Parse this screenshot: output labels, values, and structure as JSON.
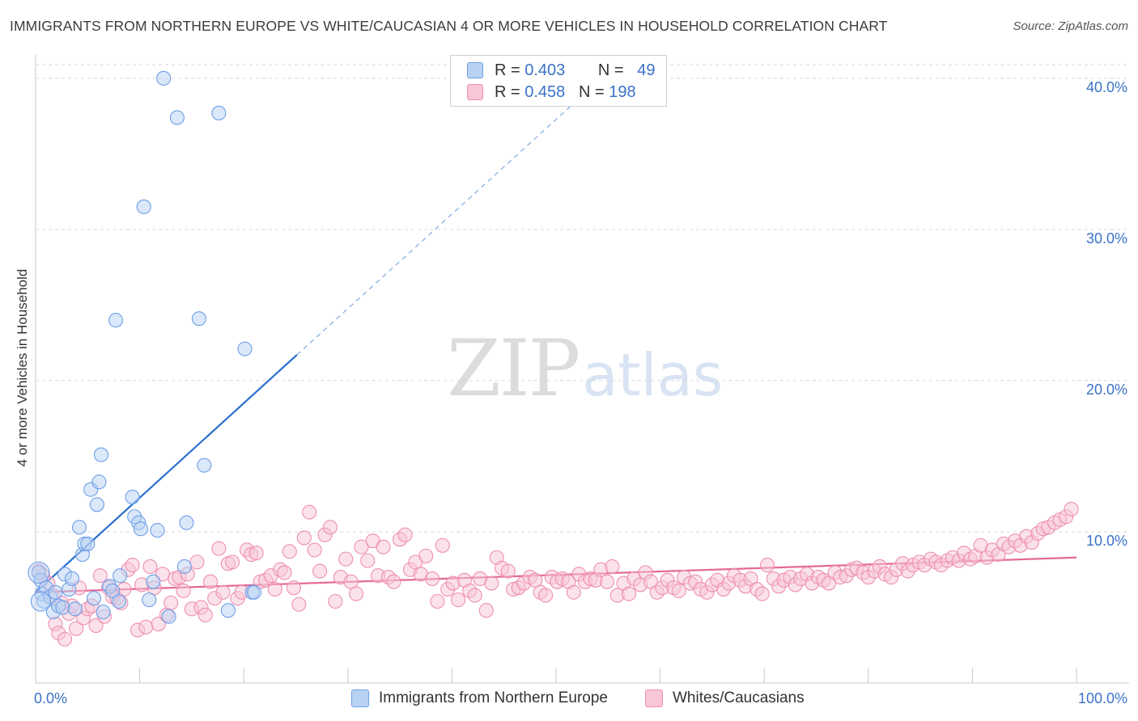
{
  "title": "IMMIGRANTS FROM NORTHERN EUROPE VS WHITE/CAUCASIAN 4 OR MORE VEHICLES IN HOUSEHOLD CORRELATION CHART",
  "source": "Source: ZipAtlas.com",
  "watermark": {
    "zip": "ZIP",
    "atlas": "atlas"
  },
  "legend": {
    "rows": [
      {
        "r_label": "R =",
        "r_value": "0.403",
        "n_label": "N =",
        "n_value": "49"
      },
      {
        "r_label": "R =",
        "r_value": "0.458",
        "n_label": "N =",
        "n_value": "198"
      }
    ]
  },
  "colors": {
    "blue": "#6d9ee8",
    "blue_fill": "#b8d2f4",
    "blue_line": "#2a6fcf",
    "pink": "#ee8fae",
    "pink_fill": "#f8c6d6",
    "pink_line": "#e46a96",
    "tick_text": "#3a72c8"
  },
  "chart_data": {
    "type": "scatter",
    "title": "IMMIGRANTS FROM NORTHERN EUROPE VS WHITE/CAUCASIAN 4 OR MORE VEHICLES IN HOUSEHOLD CORRELATION CHART",
    "xlabel": "",
    "ylabel": "4 or more Vehicles in Household",
    "x_ticks": [
      "0.0%",
      "100.0%"
    ],
    "y_ticks": [
      "10.0%",
      "20.0%",
      "30.0%",
      "40.0%"
    ],
    "xlim": [
      0,
      100
    ],
    "ylim": [
      0,
      40.9
    ],
    "grid": true,
    "legend_position": "bottom",
    "series": [
      {
        "name": "Immigrants from Northern Europe",
        "color": "blue",
        "r": 0.403,
        "n": 49,
        "trend": {
          "x0": 0,
          "y0": 6.0,
          "x1": 25.1,
          "y1": 21.7,
          "dashed_to_x": 52.0
        },
        "points": [
          [
            0.3,
            7.3
          ],
          [
            0.5,
            6.8
          ],
          [
            0.6,
            5.9
          ],
          [
            0.8,
            5.4
          ],
          [
            1.0,
            6.3
          ],
          [
            1.4,
            5.7
          ],
          [
            1.7,
            4.7
          ],
          [
            1.9,
            6.0
          ],
          [
            2.2,
            5.1
          ],
          [
            2.6,
            5.0
          ],
          [
            2.8,
            7.2
          ],
          [
            3.2,
            6.2
          ],
          [
            3.5,
            6.9
          ],
          [
            3.8,
            4.9
          ],
          [
            4.2,
            10.3
          ],
          [
            4.5,
            8.5
          ],
          [
            4.7,
            9.2
          ],
          [
            5.0,
            9.2
          ],
          [
            5.3,
            12.8
          ],
          [
            5.6,
            5.6
          ],
          [
            5.9,
            11.8
          ],
          [
            6.1,
            13.3
          ],
          [
            6.3,
            15.1
          ],
          [
            6.5,
            4.7
          ],
          [
            7.1,
            6.4
          ],
          [
            7.4,
            6.1
          ],
          [
            7.7,
            24.0
          ],
          [
            8.0,
            5.4
          ],
          [
            8.1,
            7.1
          ],
          [
            9.3,
            12.3
          ],
          [
            9.5,
            11.0
          ],
          [
            9.9,
            10.6
          ],
          [
            10.1,
            10.2
          ],
          [
            10.4,
            31.5
          ],
          [
            10.9,
            5.5
          ],
          [
            11.3,
            6.7
          ],
          [
            11.7,
            10.1
          ],
          [
            12.3,
            40.0
          ],
          [
            12.8,
            4.4
          ],
          [
            13.6,
            37.4
          ],
          [
            14.3,
            7.7
          ],
          [
            14.5,
            10.6
          ],
          [
            15.7,
            24.1
          ],
          [
            16.2,
            14.4
          ],
          [
            17.6,
            37.7
          ],
          [
            18.5,
            4.8
          ],
          [
            20.1,
            22.1
          ],
          [
            20.8,
            6.0
          ],
          [
            21.0,
            6.0
          ]
        ]
      },
      {
        "name": "Whites/Caucasians",
        "color": "pink",
        "r": 0.458,
        "n": 198,
        "trend": {
          "x0": 0,
          "y0": 6.0,
          "x1": 100,
          "y1": 8.3
        },
        "points": [
          [
            0.3,
            7.4
          ],
          [
            0.7,
            7.1
          ],
          [
            1.2,
            6.6
          ],
          [
            1.6,
            5.8
          ],
          [
            1.9,
            3.9
          ],
          [
            2.2,
            3.3
          ],
          [
            2.5,
            5.3
          ],
          [
            2.8,
            2.9
          ],
          [
            3.2,
            4.6
          ],
          [
            3.5,
            5.1
          ],
          [
            3.9,
            3.6
          ],
          [
            4.2,
            6.3
          ],
          [
            4.6,
            4.3
          ],
          [
            5.0,
            4.9
          ],
          [
            5.4,
            5.1
          ],
          [
            5.8,
            3.8
          ],
          [
            6.2,
            7.1
          ],
          [
            6.6,
            4.4
          ],
          [
            7.0,
            6.3
          ],
          [
            7.4,
            5.7
          ],
          [
            7.8,
            5.6
          ],
          [
            8.2,
            5.3
          ],
          [
            8.5,
            6.2
          ],
          [
            8.9,
            7.5
          ],
          [
            9.3,
            7.8
          ],
          [
            9.8,
            3.5
          ],
          [
            10.2,
            6.5
          ],
          [
            10.6,
            3.7
          ],
          [
            11.0,
            7.7
          ],
          [
            11.4,
            6.3
          ],
          [
            11.8,
            3.9
          ],
          [
            12.2,
            7.2
          ],
          [
            12.6,
            4.5
          ],
          [
            13.0,
            5.3
          ],
          [
            13.4,
            6.9
          ],
          [
            13.8,
            7.0
          ],
          [
            14.2,
            6.1
          ],
          [
            14.6,
            7.2
          ],
          [
            15.0,
            4.9
          ],
          [
            15.5,
            8.0
          ],
          [
            15.9,
            5.0
          ],
          [
            16.3,
            4.5
          ],
          [
            16.8,
            6.7
          ],
          [
            17.2,
            5.6
          ],
          [
            17.6,
            8.9
          ],
          [
            18.0,
            6.0
          ],
          [
            18.5,
            7.9
          ],
          [
            18.9,
            8.0
          ],
          [
            19.4,
            5.6
          ],
          [
            19.8,
            6.0
          ],
          [
            20.3,
            8.8
          ],
          [
            20.7,
            8.5
          ],
          [
            21.2,
            8.6
          ],
          [
            21.6,
            6.7
          ],
          [
            22.1,
            6.8
          ],
          [
            22.6,
            7.1
          ],
          [
            23.0,
            6.2
          ],
          [
            23.5,
            7.5
          ],
          [
            23.9,
            7.3
          ],
          [
            24.4,
            8.7
          ],
          [
            24.8,
            6.3
          ],
          [
            25.3,
            5.2
          ],
          [
            25.8,
            9.6
          ],
          [
            26.3,
            11.3
          ],
          [
            26.8,
            8.8
          ],
          [
            27.3,
            7.4
          ],
          [
            27.8,
            9.8
          ],
          [
            28.3,
            10.3
          ],
          [
            28.8,
            5.4
          ],
          [
            29.3,
            7.0
          ],
          [
            29.8,
            8.2
          ],
          [
            30.3,
            6.7
          ],
          [
            30.8,
            5.9
          ],
          [
            31.3,
            9.0
          ],
          [
            31.9,
            8.1
          ],
          [
            32.4,
            9.4
          ],
          [
            32.9,
            7.1
          ],
          [
            33.4,
            9.0
          ],
          [
            33.9,
            7.0
          ],
          [
            34.4,
            6.7
          ],
          [
            35.0,
            9.5
          ],
          [
            35.5,
            9.8
          ],
          [
            36.0,
            7.5
          ],
          [
            36.5,
            8.0
          ],
          [
            37.0,
            7.2
          ],
          [
            37.5,
            8.4
          ],
          [
            38.1,
            6.9
          ],
          [
            38.6,
            5.4
          ],
          [
            39.1,
            9.1
          ],
          [
            39.6,
            6.2
          ],
          [
            40.1,
            6.6
          ],
          [
            40.6,
            5.5
          ],
          [
            41.2,
            6.8
          ],
          [
            41.7,
            6.1
          ],
          [
            42.2,
            5.8
          ],
          [
            42.7,
            6.9
          ],
          [
            43.3,
            4.8
          ],
          [
            43.8,
            6.6
          ],
          [
            44.3,
            8.3
          ],
          [
            44.8,
            7.6
          ],
          [
            45.4,
            7.4
          ],
          [
            45.9,
            6.2
          ],
          [
            46.4,
            6.3
          ],
          [
            46.9,
            6.6
          ],
          [
            47.5,
            7.0
          ],
          [
            48.0,
            6.8
          ],
          [
            48.5,
            6.0
          ],
          [
            49.0,
            5.8
          ],
          [
            49.6,
            7.0
          ],
          [
            50.1,
            6.7
          ],
          [
            50.6,
            6.9
          ],
          [
            51.2,
            6.7
          ],
          [
            51.7,
            6.0
          ],
          [
            52.2,
            7.2
          ],
          [
            52.8,
            6.7
          ],
          [
            53.3,
            6.9
          ],
          [
            53.8,
            6.8
          ],
          [
            54.3,
            7.5
          ],
          [
            54.9,
            6.7
          ],
          [
            55.4,
            7.7
          ],
          [
            55.9,
            5.8
          ],
          [
            56.5,
            6.6
          ],
          [
            57.0,
            5.9
          ],
          [
            57.5,
            6.9
          ],
          [
            58.1,
            6.5
          ],
          [
            58.6,
            7.3
          ],
          [
            59.1,
            6.7
          ],
          [
            59.7,
            6.0
          ],
          [
            60.2,
            6.3
          ],
          [
            60.7,
            6.8
          ],
          [
            61.3,
            6.3
          ],
          [
            61.8,
            6.1
          ],
          [
            62.3,
            7.0
          ],
          [
            62.9,
            6.6
          ],
          [
            63.4,
            6.7
          ],
          [
            63.9,
            6.2
          ],
          [
            64.5,
            6.0
          ],
          [
            65.0,
            6.5
          ],
          [
            65.5,
            6.8
          ],
          [
            66.1,
            6.2
          ],
          [
            66.6,
            6.6
          ],
          [
            67.1,
            7.1
          ],
          [
            67.7,
            6.8
          ],
          [
            68.2,
            6.4
          ],
          [
            68.7,
            6.9
          ],
          [
            69.3,
            6.2
          ],
          [
            69.8,
            5.9
          ],
          [
            70.3,
            7.8
          ],
          [
            70.9,
            6.9
          ],
          [
            71.4,
            6.4
          ],
          [
            71.9,
            6.8
          ],
          [
            72.5,
            7.0
          ],
          [
            73.0,
            6.5
          ],
          [
            73.5,
            6.9
          ],
          [
            74.1,
            7.2
          ],
          [
            74.6,
            6.6
          ],
          [
            75.2,
            7.0
          ],
          [
            75.7,
            6.8
          ],
          [
            76.2,
            6.6
          ],
          [
            76.8,
            7.3
          ],
          [
            77.3,
            7.0
          ],
          [
            77.9,
            7.1
          ],
          [
            78.4,
            7.5
          ],
          [
            78.9,
            7.6
          ],
          [
            79.5,
            7.3
          ],
          [
            80.0,
            7.0
          ],
          [
            80.6,
            7.4
          ],
          [
            81.1,
            7.7
          ],
          [
            81.6,
            7.2
          ],
          [
            82.2,
            7.0
          ],
          [
            82.7,
            7.5
          ],
          [
            83.3,
            7.9
          ],
          [
            83.8,
            7.4
          ],
          [
            84.3,
            7.8
          ],
          [
            84.9,
            8.0
          ],
          [
            85.4,
            7.8
          ],
          [
            86.0,
            8.2
          ],
          [
            86.5,
            8.0
          ],
          [
            87.0,
            7.8
          ],
          [
            87.6,
            8.1
          ],
          [
            88.1,
            8.3
          ],
          [
            88.7,
            8.1
          ],
          [
            89.2,
            8.6
          ],
          [
            89.8,
            8.2
          ],
          [
            90.3,
            8.4
          ],
          [
            90.8,
            9.1
          ],
          [
            91.4,
            8.3
          ],
          [
            91.9,
            8.8
          ],
          [
            92.5,
            8.5
          ],
          [
            93.0,
            9.2
          ],
          [
            93.5,
            9.0
          ],
          [
            94.1,
            9.4
          ],
          [
            94.6,
            9.1
          ],
          [
            95.2,
            9.7
          ],
          [
            95.7,
            9.3
          ],
          [
            96.3,
            9.9
          ],
          [
            96.8,
            10.2
          ],
          [
            97.3,
            10.3
          ],
          [
            97.9,
            10.6
          ],
          [
            98.4,
            10.8
          ],
          [
            99.0,
            11.0
          ],
          [
            99.5,
            11.5
          ]
        ]
      }
    ]
  }
}
